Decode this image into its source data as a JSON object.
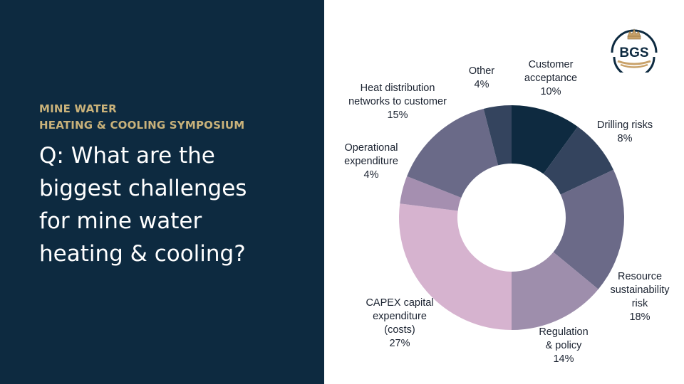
{
  "header": {
    "eyebrow_line1": "MINE WATER",
    "eyebrow_line2": "HEATING & COOLING SYMPOSIUM"
  },
  "question": {
    "line1": "Q: What are the",
    "line2": "biggest challenges",
    "line3": "for mine water",
    "line4": "heating & cooling?"
  },
  "logo": {
    "text": "BGS"
  },
  "colors": {
    "left_bg": "#0d2a40",
    "accent": "#c9b27a"
  },
  "chart_data": {
    "type": "pie",
    "donut": true,
    "title": "",
    "legend": "none",
    "slices": [
      {
        "lines": [
          "Customer",
          "acceptance",
          "10%"
        ],
        "value": 10,
        "color": "#0e2a40"
      },
      {
        "lines": [
          "Drilling risks",
          "8%"
        ],
        "value": 8,
        "color": "#34445e"
      },
      {
        "lines": [
          "Resource",
          "sustainability",
          "risk",
          "18%"
        ],
        "value": 18,
        "color": "#6b6a88"
      },
      {
        "lines": [
          "Regulation",
          "& policy",
          "14%"
        ],
        "value": 14,
        "color": "#9e8eac"
      },
      {
        "lines": [
          "CAPEX capital",
          "expenditure",
          "(costs)",
          "27%"
        ],
        "value": 27,
        "color": "#d6b3cf"
      },
      {
        "lines": [
          "Operational",
          "expenditure",
          "4%"
        ],
        "value": 4,
        "color": "#a58fb0"
      },
      {
        "lines": [
          "Heat distribution",
          "networks to customer",
          "15%"
        ],
        "value": 15,
        "color": "#6a6a88"
      },
      {
        "lines": [
          "Other",
          "4%"
        ],
        "value": 4,
        "color": "#34445e"
      }
    ]
  }
}
